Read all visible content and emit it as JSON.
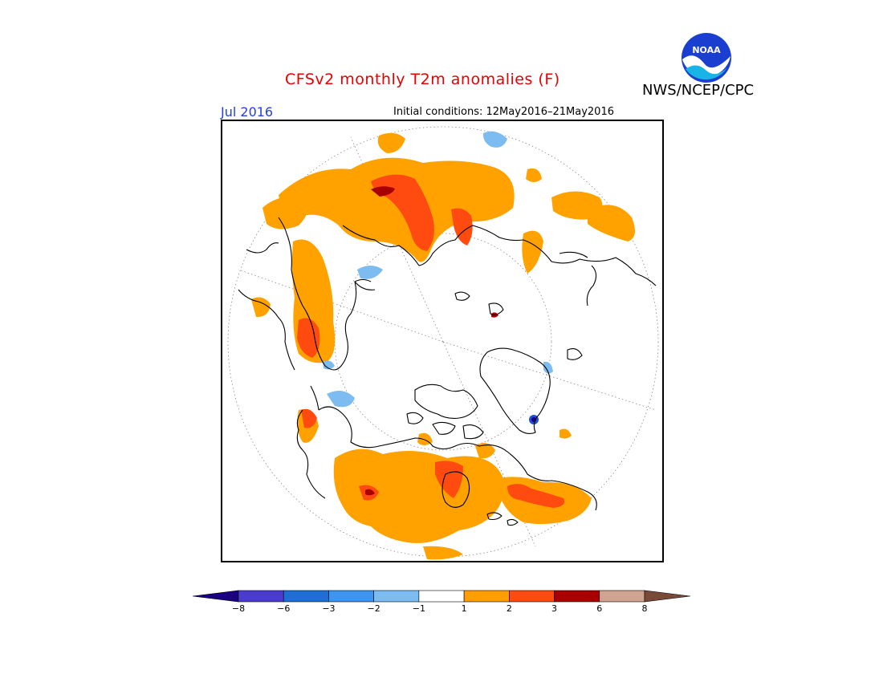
{
  "header": {
    "title": "CFSv2 monthly T2m anomalies (F)",
    "agency": "NWS/NCEP/CPC",
    "logo_text": "NOAA",
    "month": "Jul 2016",
    "initial_conditions": "Initial conditions: 12May2016–21May2016"
  },
  "map": {
    "projection": "north polar stereographic",
    "background": "#ffffff",
    "coastline_color": "#000000",
    "graticule_color": "#808080"
  },
  "legend": {
    "tick_labels": [
      "-8",
      "-6",
      "-3",
      "-2",
      "-1",
      "1",
      "2",
      "3",
      "6",
      "8"
    ],
    "colors": [
      "#1a0082",
      "#4b3ccc",
      "#1f6ed4",
      "#3d95f0",
      "#7cbcf0",
      "#ffffff",
      "#ff9e00",
      "#ff4a10",
      "#a80000",
      "#cfa490",
      "#7a4a38"
    ],
    "accent": {
      "orange": "#ffa200",
      "red": "#ff4a10",
      "darkred": "#a80000",
      "lightblue": "#7cbcf0",
      "blue": "#1f4fd4"
    }
  }
}
